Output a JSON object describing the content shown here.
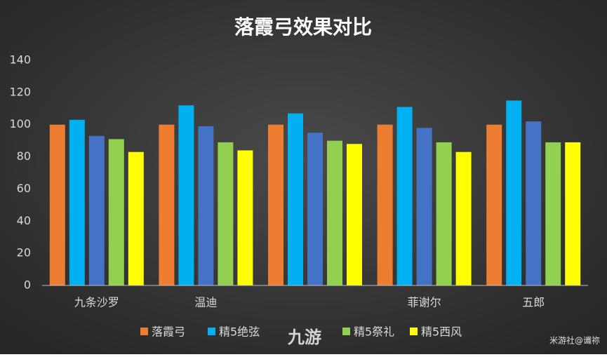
{
  "chart_data": {
    "type": "bar",
    "title": "落霞弓效果对比",
    "categories": [
      "九条沙罗",
      "温迪",
      null,
      "菲谢尔",
      "五郎"
    ],
    "series": [
      {
        "name": "落霞弓",
        "color": "#ed7d31",
        "values": [
          100,
          100,
          100,
          100,
          100
        ]
      },
      {
        "name": "精5绝弦",
        "color": "#00b0f0",
        "values": [
          103,
          112,
          107,
          111,
          115
        ]
      },
      {
        "color": "#4472c4",
        "values": [
          93,
          99,
          95,
          98,
          102
        ]
      },
      {
        "name": "精5祭礼",
        "color": "#92d050",
        "values": [
          91,
          89,
          90,
          89,
          89
        ]
      },
      {
        "name": "精5西风",
        "color": "#ffff00",
        "values": [
          83,
          84,
          88,
          83,
          89
        ]
      }
    ],
    "ylim": [
      0,
      140
    ],
    "yticks": [
      0,
      20,
      40,
      60,
      80,
      100,
      120,
      140
    ],
    "grid": false,
    "legend": "bottom",
    "watermarks": [
      "九游",
      "米游社@谶祢"
    ]
  }
}
